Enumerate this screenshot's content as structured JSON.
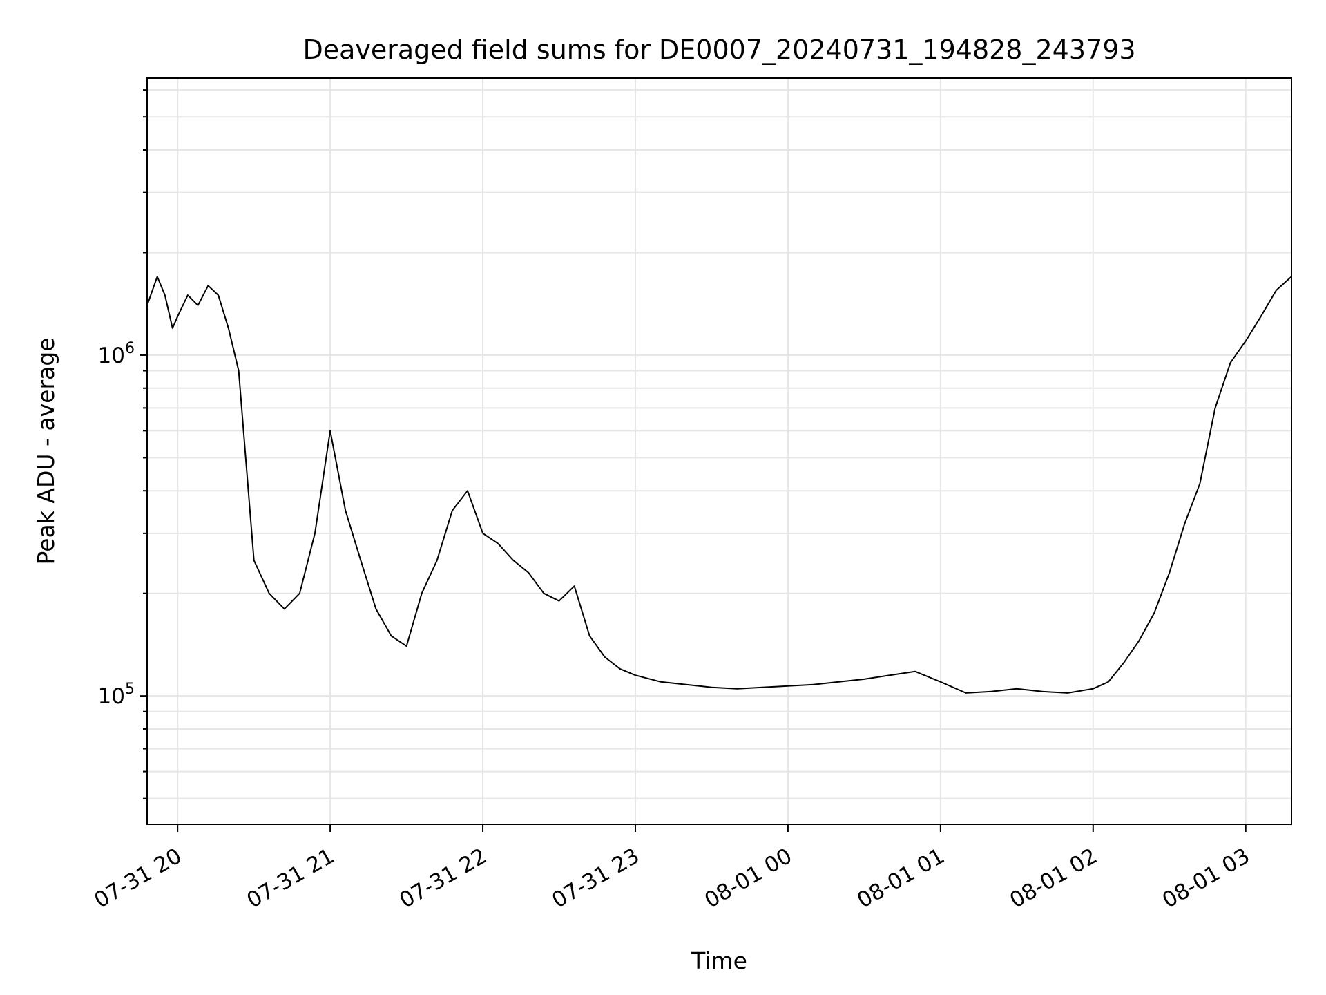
{
  "chart_data": {
    "type": "line",
    "title": "Deaveraged field sums for DE0007_20240731_194828_243793",
    "xlabel": "Time",
    "ylabel": "Peak ADU - average",
    "yscale": "log",
    "ylim": [
      42000,
      6500000
    ],
    "xlim": [
      "2024-07-31 19:48:00",
      "2024-08-01 03:18:00"
    ],
    "grid": true,
    "line_color": "#000000",
    "grid_color": "#e6e6e6",
    "x_ticks": [
      {
        "time": "2024-07-31 20:00",
        "label": "07-31 20"
      },
      {
        "time": "2024-07-31 21:00",
        "label": "07-31 21"
      },
      {
        "time": "2024-07-31 22:00",
        "label": "07-31 22"
      },
      {
        "time": "2024-07-31 23:00",
        "label": "07-31 23"
      },
      {
        "time": "2024-08-01 00:00",
        "label": "08-01 00"
      },
      {
        "time": "2024-08-01 01:00",
        "label": "08-01 01"
      },
      {
        "time": "2024-08-01 02:00",
        "label": "08-01 02"
      },
      {
        "time": "2024-08-01 03:00",
        "label": "08-01 03"
      }
    ],
    "y_ticks": [
      {
        "value": 100000,
        "base": "10",
        "exp": "5"
      },
      {
        "value": 1000000,
        "base": "10",
        "exp": "6"
      }
    ],
    "series": [
      {
        "x": [
          "2024-07-31 19:48",
          "2024-07-31 19:52",
          "2024-07-31 19:55",
          "2024-07-31 19:58",
          "2024-07-31 20:00",
          "2024-07-31 20:04",
          "2024-07-31 20:08",
          "2024-07-31 20:12",
          "2024-07-31 20:16",
          "2024-07-31 20:20",
          "2024-07-31 20:24",
          "2024-07-31 20:30",
          "2024-07-31 20:36",
          "2024-07-31 20:42",
          "2024-07-31 20:48",
          "2024-07-31 20:54",
          "2024-07-31 21:00",
          "2024-07-31 21:06",
          "2024-07-31 21:12",
          "2024-07-31 21:18",
          "2024-07-31 21:24",
          "2024-07-31 21:30",
          "2024-07-31 21:36",
          "2024-07-31 21:42",
          "2024-07-31 21:48",
          "2024-07-31 21:54",
          "2024-07-31 22:00",
          "2024-07-31 22:06",
          "2024-07-31 22:12",
          "2024-07-31 22:18",
          "2024-07-31 22:24",
          "2024-07-31 22:30",
          "2024-07-31 22:36",
          "2024-07-31 22:42",
          "2024-07-31 22:48",
          "2024-07-31 22:54",
          "2024-07-31 23:00",
          "2024-07-31 23:10",
          "2024-07-31 23:20",
          "2024-07-31 23:30",
          "2024-07-31 23:40",
          "2024-07-31 23:50",
          "2024-08-01 00:00",
          "2024-08-01 00:10",
          "2024-08-01 00:20",
          "2024-08-01 00:30",
          "2024-08-01 00:40",
          "2024-08-01 00:50",
          "2024-08-01 01:00",
          "2024-08-01 01:10",
          "2024-08-01 01:20",
          "2024-08-01 01:30",
          "2024-08-01 01:40",
          "2024-08-01 01:50",
          "2024-08-01 02:00",
          "2024-08-01 02:06",
          "2024-08-01 02:12",
          "2024-08-01 02:18",
          "2024-08-01 02:24",
          "2024-08-01 02:30",
          "2024-08-01 02:36",
          "2024-08-01 02:42",
          "2024-08-01 02:48",
          "2024-08-01 02:54",
          "2024-08-01 03:00",
          "2024-08-01 03:06",
          "2024-08-01 03:12",
          "2024-08-01 03:18"
        ],
        "y": [
          1400000,
          1700000,
          1500000,
          1200000,
          1300000,
          1500000,
          1400000,
          1600000,
          1500000,
          1200000,
          900000,
          250000,
          200000,
          180000,
          200000,
          300000,
          600000,
          350000,
          250000,
          180000,
          150000,
          140000,
          200000,
          250000,
          350000,
          400000,
          300000,
          280000,
          250000,
          230000,
          200000,
          190000,
          210000,
          150000,
          130000,
          120000,
          115000,
          110000,
          108000,
          106000,
          105000,
          106000,
          107000,
          108000,
          110000,
          112000,
          115000,
          118000,
          110000,
          102000,
          103000,
          105000,
          103000,
          102000,
          105000,
          110000,
          125000,
          145000,
          175000,
          230000,
          320000,
          420000,
          700000,
          950000,
          1100000,
          1300000,
          1550000,
          1700000
        ]
      }
    ]
  }
}
